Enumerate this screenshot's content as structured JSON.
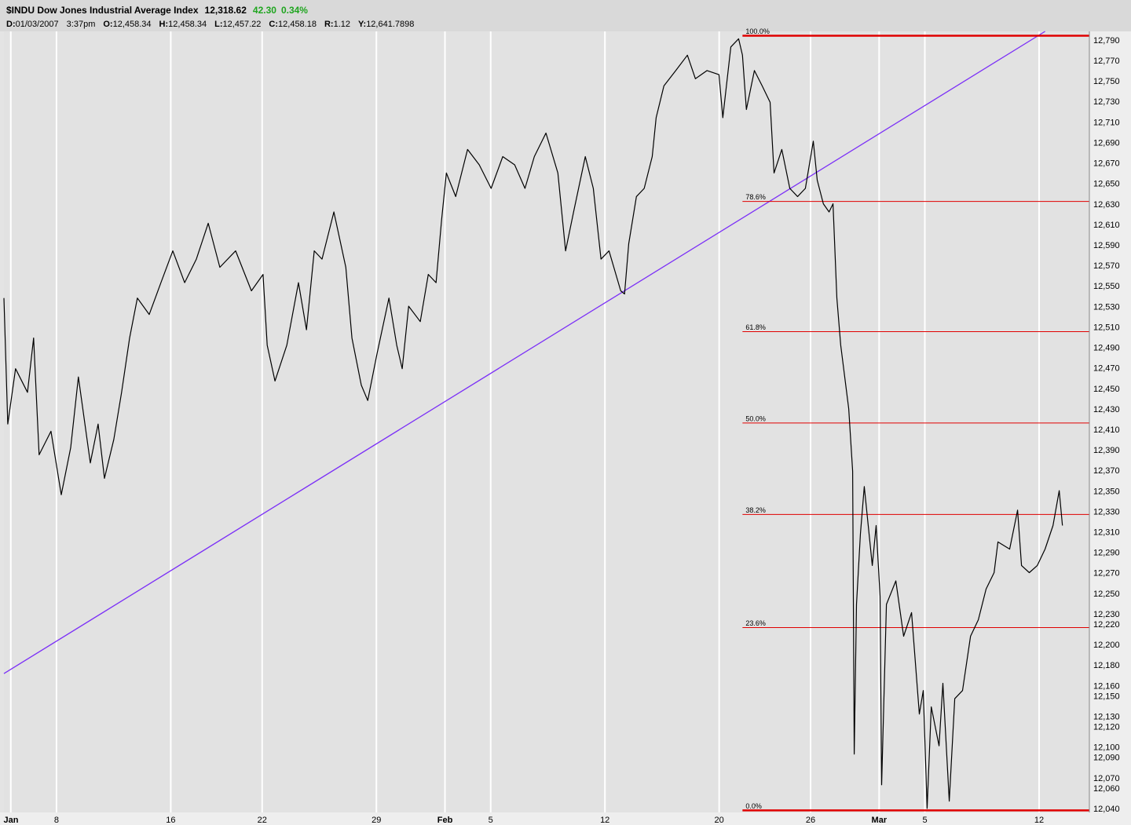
{
  "header": {
    "symbol": "$INDU Dow Jones Industrial Average Index",
    "last": "12,318.62",
    "change": "42.30",
    "change_pct": "0.34%",
    "info": [
      {
        "key": "D:",
        "value": "01/03/2007"
      },
      {
        "key": "",
        "value": "3:37pm"
      },
      {
        "key": "O:",
        "value": "12,458.34"
      },
      {
        "key": "H:",
        "value": "12,458.34"
      },
      {
        "key": "L:",
        "value": "12,457.22"
      },
      {
        "key": "C:",
        "value": "12,458.18"
      },
      {
        "key": "R:",
        "value": "1.12"
      },
      {
        "key": "Y:",
        "value": "12,641.7898"
      }
    ]
  },
  "chart_data": {
    "type": "line",
    "grid": true,
    "xlim": [
      0.7,
      48.2
    ],
    "ylim": [
      12037,
      12799.2
    ],
    "xticks": [
      {
        "value": 1,
        "label": "Jan"
      },
      {
        "value": 3,
        "label": "8"
      },
      {
        "value": 8,
        "label": "16"
      },
      {
        "value": 12,
        "label": "22"
      },
      {
        "value": 17,
        "label": "29"
      },
      {
        "value": 20,
        "label": "Feb"
      },
      {
        "value": 22,
        "label": "5"
      },
      {
        "value": 27,
        "label": "12"
      },
      {
        "value": 32,
        "label": "20"
      },
      {
        "value": 36,
        "label": "26"
      },
      {
        "value": 39,
        "label": "Mar"
      },
      {
        "value": 41,
        "label": "5"
      },
      {
        "value": 46,
        "label": "12"
      }
    ],
    "yticks": [
      {
        "value": 12790,
        "label": "12,790"
      },
      {
        "value": 12770,
        "label": "12,770"
      },
      {
        "value": 12750,
        "label": "12,750"
      },
      {
        "value": 12730,
        "label": "12,730"
      },
      {
        "value": 12710,
        "label": "12,710"
      },
      {
        "value": 12690,
        "label": "12,690"
      },
      {
        "value": 12670,
        "label": "12,670"
      },
      {
        "value": 12650,
        "label": "12,650"
      },
      {
        "value": 12630,
        "label": "12,630"
      },
      {
        "value": 12610,
        "label": "12,610"
      },
      {
        "value": 12590,
        "label": "12,590"
      },
      {
        "value": 12570,
        "label": "12,570"
      },
      {
        "value": 12550,
        "label": "12,550"
      },
      {
        "value": 12530,
        "label": "12,530"
      },
      {
        "value": 12510,
        "label": "12,510"
      },
      {
        "value": 12490,
        "label": "12,490"
      },
      {
        "value": 12470,
        "label": "12,470"
      },
      {
        "value": 12450,
        "label": "12,450"
      },
      {
        "value": 12430,
        "label": "12,430"
      },
      {
        "value": 12410,
        "label": "12,410"
      },
      {
        "value": 12390,
        "label": "12,390"
      },
      {
        "value": 12370,
        "label": "12,370"
      },
      {
        "value": 12350,
        "label": "12,350"
      },
      {
        "value": 12330,
        "label": "12,330"
      },
      {
        "value": 12310,
        "label": "12,310"
      },
      {
        "value": 12290,
        "label": "12,290"
      },
      {
        "value": 12270,
        "label": "12,270"
      },
      {
        "value": 12250,
        "label": "12,250"
      },
      {
        "value": 12230,
        "label": "12,230"
      },
      {
        "value": 12220,
        "label": "12,220"
      },
      {
        "value": 12200,
        "label": "12,200"
      },
      {
        "value": 12180,
        "label": "12,180"
      },
      {
        "value": 12160,
        "label": "12,160"
      },
      {
        "value": 12150,
        "label": "12,150"
      },
      {
        "value": 12130,
        "label": "12,130"
      },
      {
        "value": 12120,
        "label": "12,120"
      },
      {
        "value": 12100,
        "label": "12,100"
      },
      {
        "value": 12090,
        "label": "12,090"
      },
      {
        "value": 12070,
        "label": "12,070"
      },
      {
        "value": 12060,
        "label": "12,060"
      },
      {
        "value": 12040,
        "label": "12,040"
      }
    ],
    "series": [
      {
        "color": "#000000",
        "x": [
          0.7,
          0.87,
          1.21,
          1.73,
          2.0,
          2.24,
          2.76,
          3.21,
          3.62,
          3.96,
          4.48,
          4.82,
          5.1,
          5.51,
          5.85,
          6.2,
          6.54,
          7.06,
          7.57,
          8.09,
          8.61,
          9.12,
          9.64,
          10.15,
          10.84,
          11.53,
          12.04,
          12.22,
          12.56,
          13.08,
          13.59,
          13.94,
          14.28,
          14.62,
          15.14,
          15.66,
          15.93,
          16.34,
          16.62,
          17.03,
          17.55,
          17.89,
          18.13,
          18.41,
          18.92,
          19.27,
          19.61,
          19.85,
          20.06,
          20.47,
          20.99,
          21.5,
          22.02,
          22.53,
          23.05,
          23.5,
          23.91,
          24.42,
          24.94,
          25.28,
          25.63,
          26.14,
          26.49,
          26.83,
          27.18,
          27.69,
          27.86,
          28.04,
          28.38,
          28.72,
          29.07,
          29.24,
          29.58,
          30.1,
          30.61,
          30.96,
          31.47,
          31.99,
          32.16,
          32.51,
          32.85,
          33.02,
          33.19,
          33.54,
          33.88,
          34.23,
          34.4,
          34.74,
          35.09,
          35.43,
          35.77,
          36.12,
          36.29,
          36.56,
          36.81,
          36.98,
          37.15,
          37.32,
          37.67,
          37.84,
          37.91,
          38.01,
          38.18,
          38.35,
          38.7,
          38.87,
          39.04,
          39.11,
          39.32,
          39.73,
          40.07,
          40.42,
          40.76,
          40.93,
          41.1,
          41.28,
          41.62,
          41.79,
          42.07,
          42.31,
          42.65,
          43.0,
          43.34,
          43.68,
          44.03,
          44.2,
          44.71,
          45.06,
          45.23,
          45.57,
          45.92,
          46.26,
          46.61,
          46.88,
          47.02
        ],
        "values": [
          12539,
          12416,
          12470,
          12447,
          12500,
          12386,
          12409,
          12347,
          12393,
          12462,
          12378,
          12416,
          12363,
          12401,
          12447,
          12500,
          12539,
          12523,
          12554,
          12585,
          12554,
          12577,
          12612,
          12569,
          12585,
          12546,
          12562,
          12493,
          12458,
          12493,
          12554,
          12508,
          12585,
          12577,
          12623,
          12569,
          12500,
          12454,
          12439,
          12485,
          12539,
          12493,
          12470,
          12531,
          12516,
          12562,
          12554,
          12615,
          12661,
          12638,
          12684,
          12669,
          12646,
          12677,
          12669,
          12646,
          12677,
          12700,
          12661,
          12585,
          12623,
          12677,
          12646,
          12577,
          12585,
          12546,
          12543,
          12592,
          12638,
          12646,
          12677,
          12715,
          12746,
          12761,
          12776,
          12753,
          12761,
          12757,
          12715,
          12784,
          12792,
          12776,
          12723,
          12761,
          12746,
          12730,
          12661,
          12684,
          12646,
          12638,
          12646,
          12692,
          12654,
          12631,
          12623,
          12631,
          12539,
          12493,
          12431,
          12370,
          12094,
          12240,
          12309,
          12355,
          12278,
          12317,
          12248,
          12064,
          12240,
          12263,
          12209,
          12232,
          12133,
          12156,
          12041,
          12140,
          12102,
          12163,
          12048,
          12148,
          12156,
          12209,
          12225,
          12255,
          12271,
          12301,
          12294,
          12332,
          12278,
          12271,
          12278,
          12294,
          12317,
          12351,
          12317
        ]
      }
    ],
    "trendline": {
      "color": "#7b2ff7",
      "x": [
        0.7,
        46.26
      ],
      "values": [
        12172.5,
        12799.2
      ]
    },
    "fib": {
      "color": "#e00000",
      "start_x": 33.02,
      "high": 12795,
      "low": 12039,
      "levels": [
        {
          "value": 100,
          "label": "100.0%"
        },
        {
          "value": 78.6,
          "label": "78.6%"
        },
        {
          "value": 61.8,
          "label": "61.8%"
        },
        {
          "value": 50,
          "label": "50.0%"
        },
        {
          "value": 38.2,
          "label": "38.2%"
        },
        {
          "value": 23.6,
          "label": "23.6%"
        },
        {
          "value": 0,
          "label": "0.0%"
        }
      ]
    }
  }
}
